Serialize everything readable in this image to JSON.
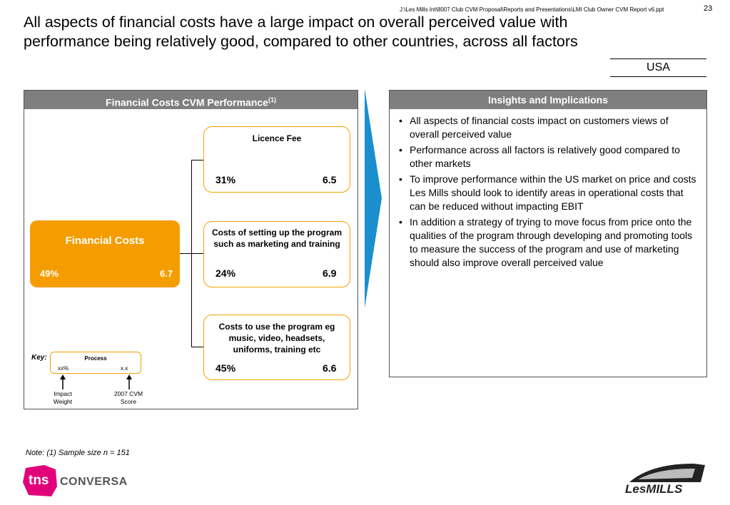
{
  "header": {
    "file_path": "J:\\Les Mills Int\\8007 Club CVM Proposal\\Reports and Presentations\\LMI Club Owner CVM Report v6.ppt",
    "page_number": "23",
    "title": "All aspects of financial costs have a large impact on overall perceived value with performance being relatively good, compared to other countries, across all factors",
    "country": "USA"
  },
  "left_panel": {
    "heading": "Financial Costs CVM Performance",
    "heading_sup": "(1)",
    "main_box": {
      "title": "Financial Costs",
      "weight": "49%",
      "score": "6.7"
    },
    "sub_boxes": [
      {
        "title": "Licence Fee",
        "weight": "31%",
        "score": "6.5"
      },
      {
        "title": "Costs of setting up the program such as marketing and training",
        "weight": "24%",
        "score": "6.9"
      },
      {
        "title": "Costs to use the program eg music, video, headsets, uniforms, training etc",
        "weight": "45%",
        "score": "6.6"
      }
    ],
    "key": {
      "label": "Key:",
      "title": "Process",
      "weight": "xx%",
      "score": "x.x",
      "weight_caption": "Impact Weight",
      "score_caption": "2007 CVM Score"
    }
  },
  "right_panel": {
    "heading": "Insights and Implications",
    "bullets": [
      "All aspects of financial costs impact on customers views of overall perceived value",
      "Performance across all factors is relatively good compared to other markets",
      "To improve performance within the US market on price and costs Les Mills should look to identify areas in operational costs that can be reduced without impacting EBIT",
      "In addition a strategy of trying to move focus from price onto the qualities of the program through developing and promoting tools to measure the success of the program and use of marketing should also improve overall perceived value"
    ]
  },
  "footer": {
    "note": "Note: (1) Sample size n = 151",
    "logo_left": "CONVERSA",
    "logo_left_mark": "tns",
    "logo_right": "LesMILLS"
  },
  "colors": {
    "orange": "#f59d00",
    "panel_header": "#7f7f7f",
    "arrow_blue": "#1b8fce",
    "tns_pink": "#e2007a"
  }
}
